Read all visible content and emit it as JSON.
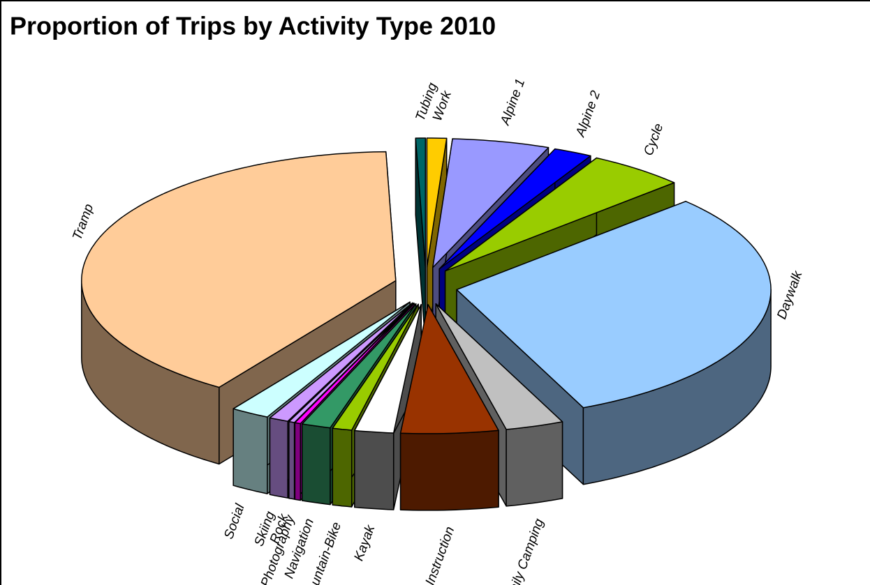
{
  "chart_data": {
    "type": "pie",
    "title": "Proportion of Trips by Activity Type 2010",
    "categories": [
      "Work",
      "Alpine 1",
      "Alpine 2",
      "Cycle",
      "Daywalk",
      "Family Camping",
      "Instruction",
      "Kayak",
      "Mountain-Bike",
      "Navigation",
      "Photography",
      "Rock",
      "Skiing",
      "Social",
      "Tramp",
      "Tubing"
    ],
    "values": [
      1,
      5,
      2,
      5,
      30.4,
      3,
      5,
      2,
      1,
      1.5,
      0.3,
      0.3,
      1,
      2,
      40,
      0.5
    ],
    "colors": [
      "#ffcc00",
      "#9999ff",
      "#0000ff",
      "#99cc00",
      "#99ccff",
      "#c0c0c0",
      "#993300",
      "#ffffff",
      "#99cc00",
      "#339966",
      "#ff00ff",
      "#cc99ff",
      "#cc99ff",
      "#ccffff",
      "#ffcc99",
      "#006666"
    ]
  }
}
